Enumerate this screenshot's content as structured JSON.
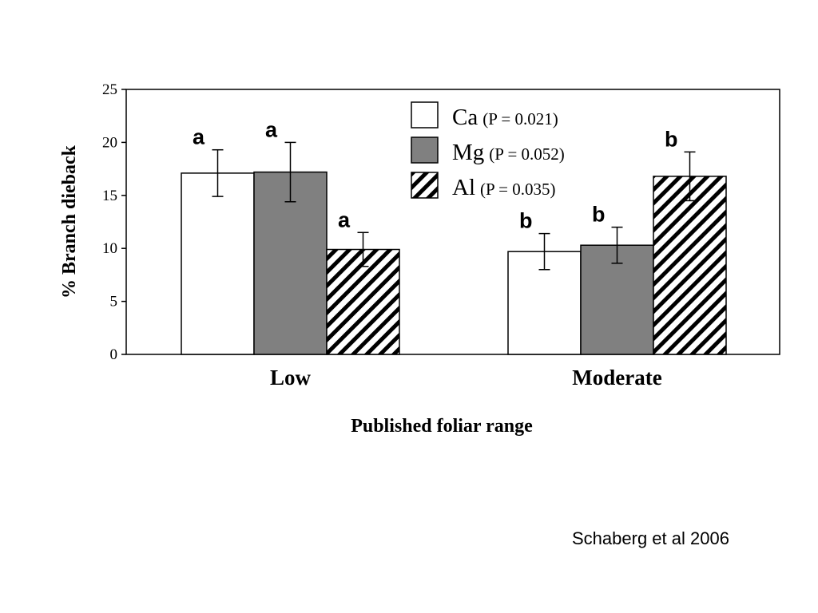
{
  "chart_data": {
    "type": "bar",
    "categories": [
      "Low",
      "Moderate"
    ],
    "xlabel": "Published foliar range",
    "ylabel": "% Branch dieback",
    "ylim": [
      0,
      25
    ],
    "yticks": [
      0,
      5,
      10,
      15,
      20,
      25
    ],
    "grid": false,
    "legend_position": "top-center",
    "series": [
      {
        "name": "Ca",
        "stat_label": "(P = 0.021)",
        "fill": "white",
        "values": [
          17.1,
          9.7
        ],
        "errors": [
          2.2,
          1.7
        ],
        "letters": [
          "a",
          "b"
        ]
      },
      {
        "name": "Mg",
        "stat_label": "(P = 0.052)",
        "fill": "gray",
        "values": [
          17.2,
          10.3
        ],
        "errors": [
          2.8,
          1.7
        ],
        "letters": [
          "a",
          "b"
        ]
      },
      {
        "name": "Al",
        "stat_label": "(P = 0.035)",
        "fill": "diagonal-hatch",
        "values": [
          9.9,
          16.8
        ],
        "errors": [
          1.6,
          2.3
        ],
        "letters": [
          "a",
          "b"
        ]
      }
    ]
  },
  "colors": {
    "gray_fill": "#808080",
    "outline": "#000000",
    "hatch": "#000000"
  },
  "credit": "Schaberg et al 2006"
}
